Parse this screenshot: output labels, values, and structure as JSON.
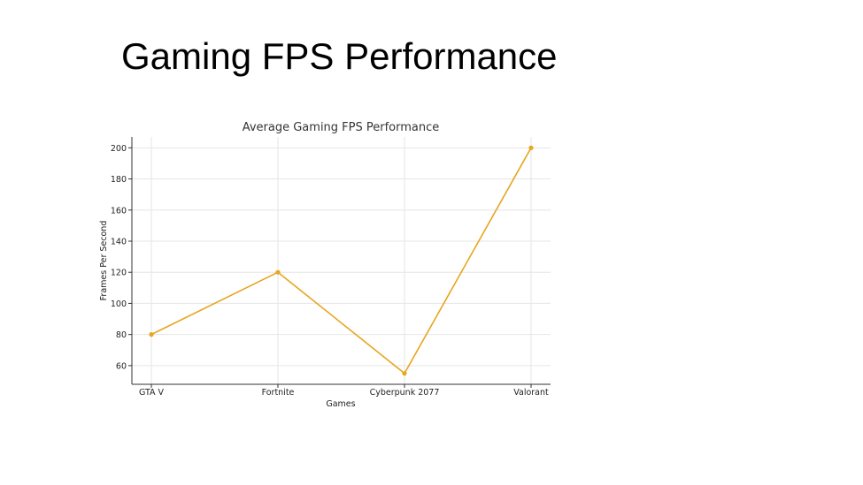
{
  "slide": {
    "title": "Gaming FPS Performance"
  },
  "chart_data": {
    "type": "line",
    "title": "Average Gaming FPS Performance",
    "xlabel": "Games",
    "ylabel": "Frames Per Second",
    "categories": [
      "GTA V",
      "Fortnite",
      "Cyberpunk 2077",
      "Valorant"
    ],
    "series": [
      {
        "values": [
          80,
          120,
          55,
          200
        ],
        "color": "#E6A620"
      }
    ],
    "yticks": [
      60,
      80,
      100,
      120,
      140,
      160,
      180,
      200
    ],
    "ylim": [
      48,
      207
    ],
    "grid": true
  }
}
